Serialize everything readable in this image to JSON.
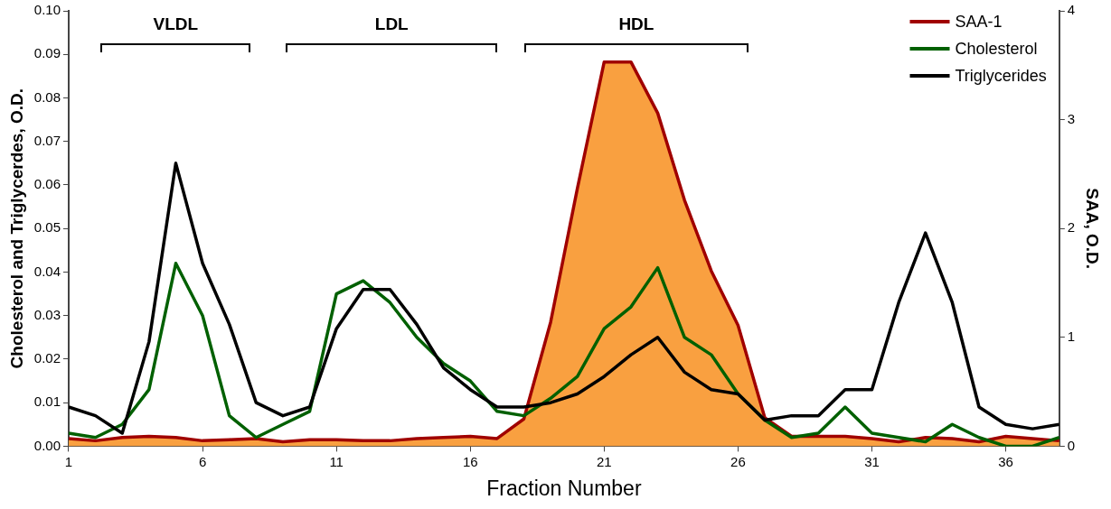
{
  "chart_data": {
    "type": "line",
    "xlabel": "Fraction Number",
    "ylabel": "Cholesterol and Triglycerdes, O.D.",
    "y2label": "SAA, O.D.",
    "x": [
      1,
      2,
      3,
      4,
      5,
      6,
      7,
      8,
      9,
      10,
      11,
      12,
      13,
      14,
      15,
      16,
      17,
      18,
      19,
      20,
      21,
      22,
      23,
      24,
      25,
      26,
      27,
      28,
      29,
      30,
      31,
      32,
      33,
      34,
      35,
      36,
      37,
      38
    ],
    "series": [
      {
        "name": "SAA-1",
        "type": "area",
        "axis": "y2",
        "color": "#a00000",
        "values": [
          0.07,
          0.05,
          0.08,
          0.09,
          0.08,
          0.05,
          0.06,
          0.07,
          0.04,
          0.06,
          0.06,
          0.05,
          0.05,
          0.07,
          0.08,
          0.09,
          0.07,
          0.25,
          1.14,
          2.37,
          3.53,
          3.53,
          3.06,
          2.26,
          1.61,
          1.11,
          0.26,
          0.09,
          0.09,
          0.09,
          0.07,
          0.04,
          0.08,
          0.07,
          0.04,
          0.09,
          0.07,
          0.05
        ]
      },
      {
        "name": "Cholesterol",
        "color": "#006000",
        "values": [
          0.003,
          0.002,
          0.005,
          0.013,
          0.042,
          0.03,
          0.007,
          0.002,
          0.005,
          0.008,
          0.035,
          0.038,
          0.033,
          0.025,
          0.019,
          0.015,
          0.008,
          0.007,
          0.011,
          0.016,
          0.027,
          0.032,
          0.041,
          0.025,
          0.021,
          0.012,
          0.006,
          0.002,
          0.003,
          0.009,
          0.003,
          0.002,
          0.001,
          0.005,
          0.002,
          0.0,
          0.0,
          0.002
        ]
      },
      {
        "name": "Triglycerides",
        "color": "#000000",
        "values": [
          0.009,
          0.007,
          0.003,
          0.024,
          0.065,
          0.042,
          0.028,
          0.01,
          0.007,
          0.009,
          0.027,
          0.036,
          0.036,
          0.028,
          0.018,
          0.013,
          0.009,
          0.009,
          0.01,
          0.012,
          0.016,
          0.021,
          0.025,
          0.017,
          0.013,
          0.012,
          0.006,
          0.007,
          0.007,
          0.013,
          0.013,
          0.033,
          0.049,
          0.033,
          0.009,
          0.005,
          0.004,
          0.005
        ]
      }
    ],
    "xlim": [
      1,
      38
    ],
    "xticks": [
      1,
      6,
      11,
      16,
      21,
      26,
      31,
      36
    ],
    "ylim": [
      0,
      0.1
    ],
    "yticks": [
      {
        "value": 0,
        "label": "0.00"
      },
      {
        "value": 0.01,
        "label": "0.01"
      },
      {
        "value": 0.02,
        "label": "0.02"
      },
      {
        "value": 0.03,
        "label": "0.03"
      },
      {
        "value": 0.04,
        "label": "0.04"
      },
      {
        "value": 0.05,
        "label": "0.05"
      },
      {
        "value": 0.06,
        "label": "0.06"
      },
      {
        "value": 0.07,
        "label": "0.07"
      },
      {
        "value": 0.08,
        "label": "0.08"
      },
      {
        "value": 0.09,
        "label": "0.09"
      },
      {
        "value": 0.1,
        "label": "0.10"
      }
    ],
    "y2lim": [
      0,
      4
    ],
    "y2ticks": [
      0,
      1,
      2,
      3,
      4
    ],
    "annotations": [
      "VLDL",
      "LDL",
      "HDL"
    ],
    "grid": false,
    "legend": "top right",
    "marker": "none",
    "line_style": "solid"
  }
}
